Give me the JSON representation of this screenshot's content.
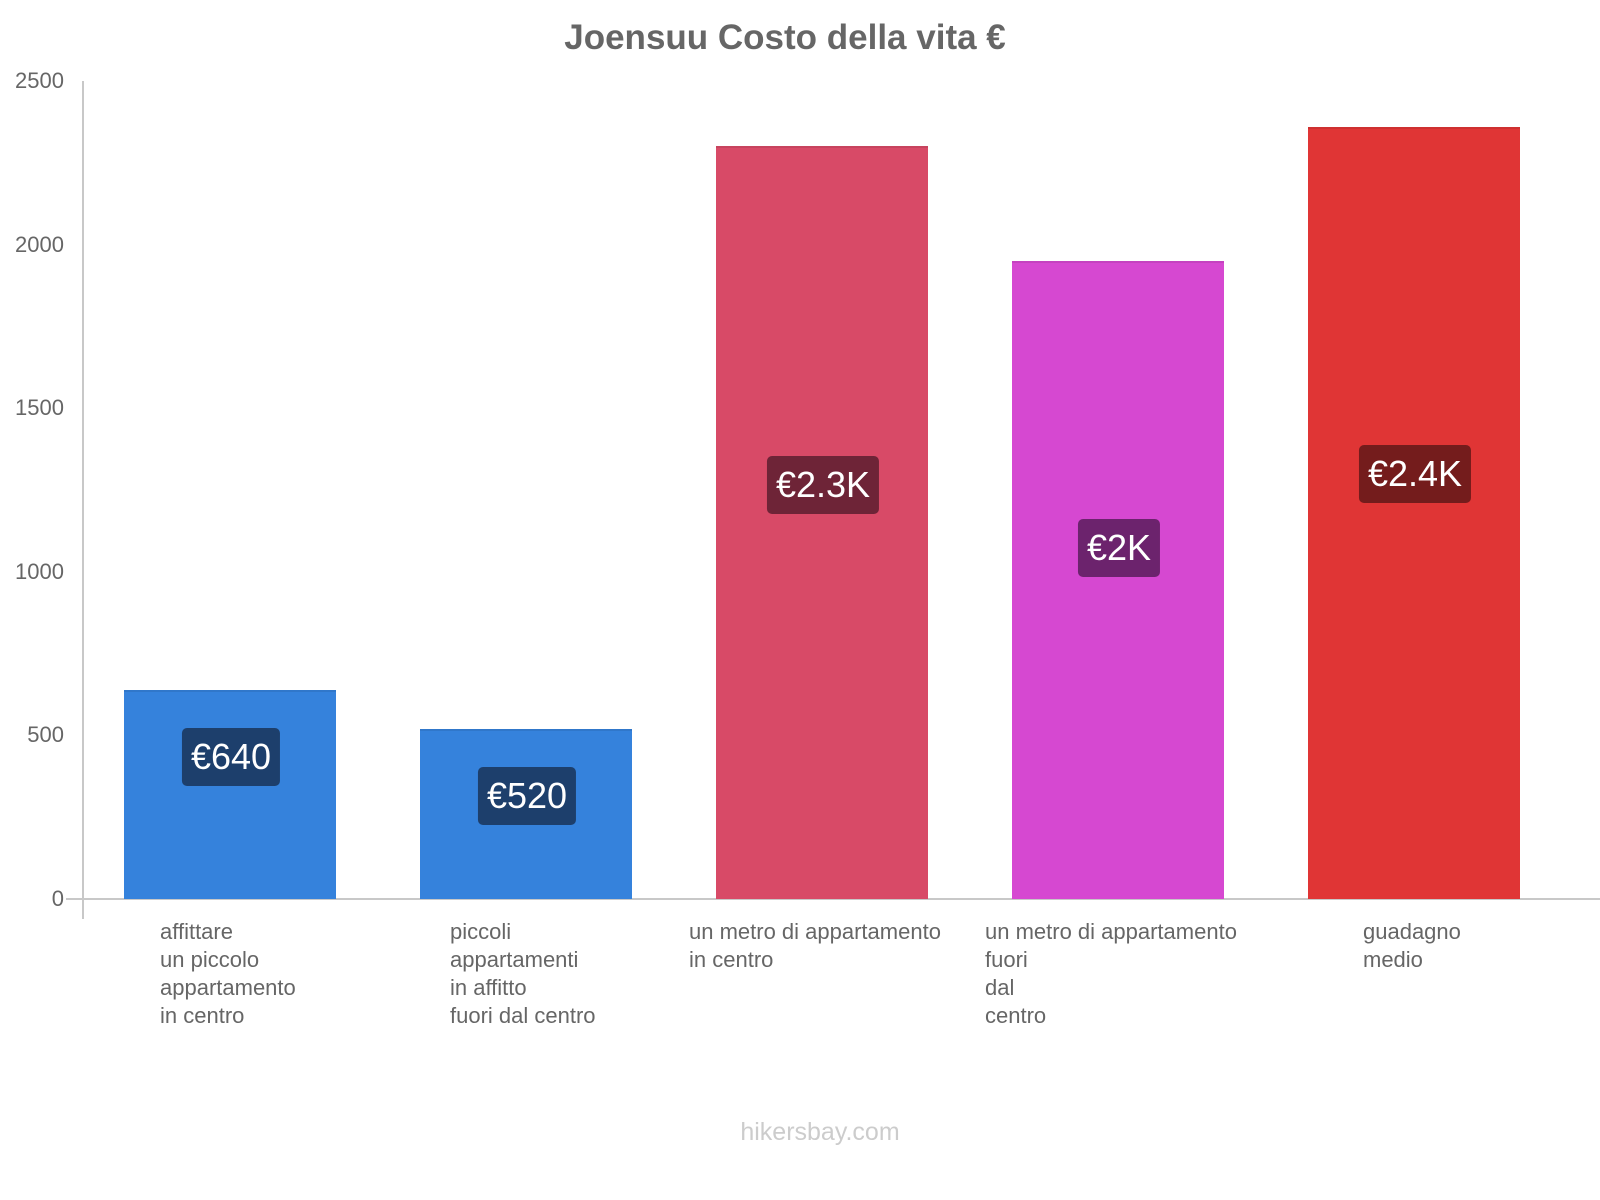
{
  "chart_data": {
    "type": "bar",
    "title": "Joensuu Costo della vita €",
    "xlabel": "",
    "ylabel": "",
    "ylim": [
      0,
      2500
    ],
    "yticks": [
      0,
      500,
      1000,
      1500,
      2000,
      2500
    ],
    "grid": false,
    "legend": null,
    "categories": [
      "affittare un piccolo appartamento in centro",
      "piccoli appartamenti in affitto fuori dal centro",
      "un metro di appartamento in centro",
      "un metro di appartamento fuori dal centro",
      "guadagno medio"
    ],
    "values": [
      640,
      520,
      2300,
      1950,
      2360
    ],
    "data_labels": [
      "€640",
      "€520",
      "€2.3K",
      "€2K",
      "€2.4K"
    ],
    "colors": [
      "#3582dc",
      "#3582dc",
      "#d84a67",
      "#d648d1",
      "#e03535"
    ],
    "label_bg_colors": [
      "#1d3f6c",
      "#1d3f6c",
      "#6e2437",
      "#6c236d",
      "#741c1c"
    ]
  },
  "xlabels_display": [
    "affittare\nun piccolo\nappartamento\nin centro",
    "piccoli\nappartamenti\nin affitto\nfuori dal centro",
    "un metro di appartamento\nin centro",
    "un metro di appartamento\nfuori\ndal\ncentro",
    "guadagno\nmedio"
  ],
  "yticks_display": [
    "0",
    "500",
    "1000",
    "1500",
    "2000",
    "2500"
  ],
  "footer": "hikersbay.com"
}
